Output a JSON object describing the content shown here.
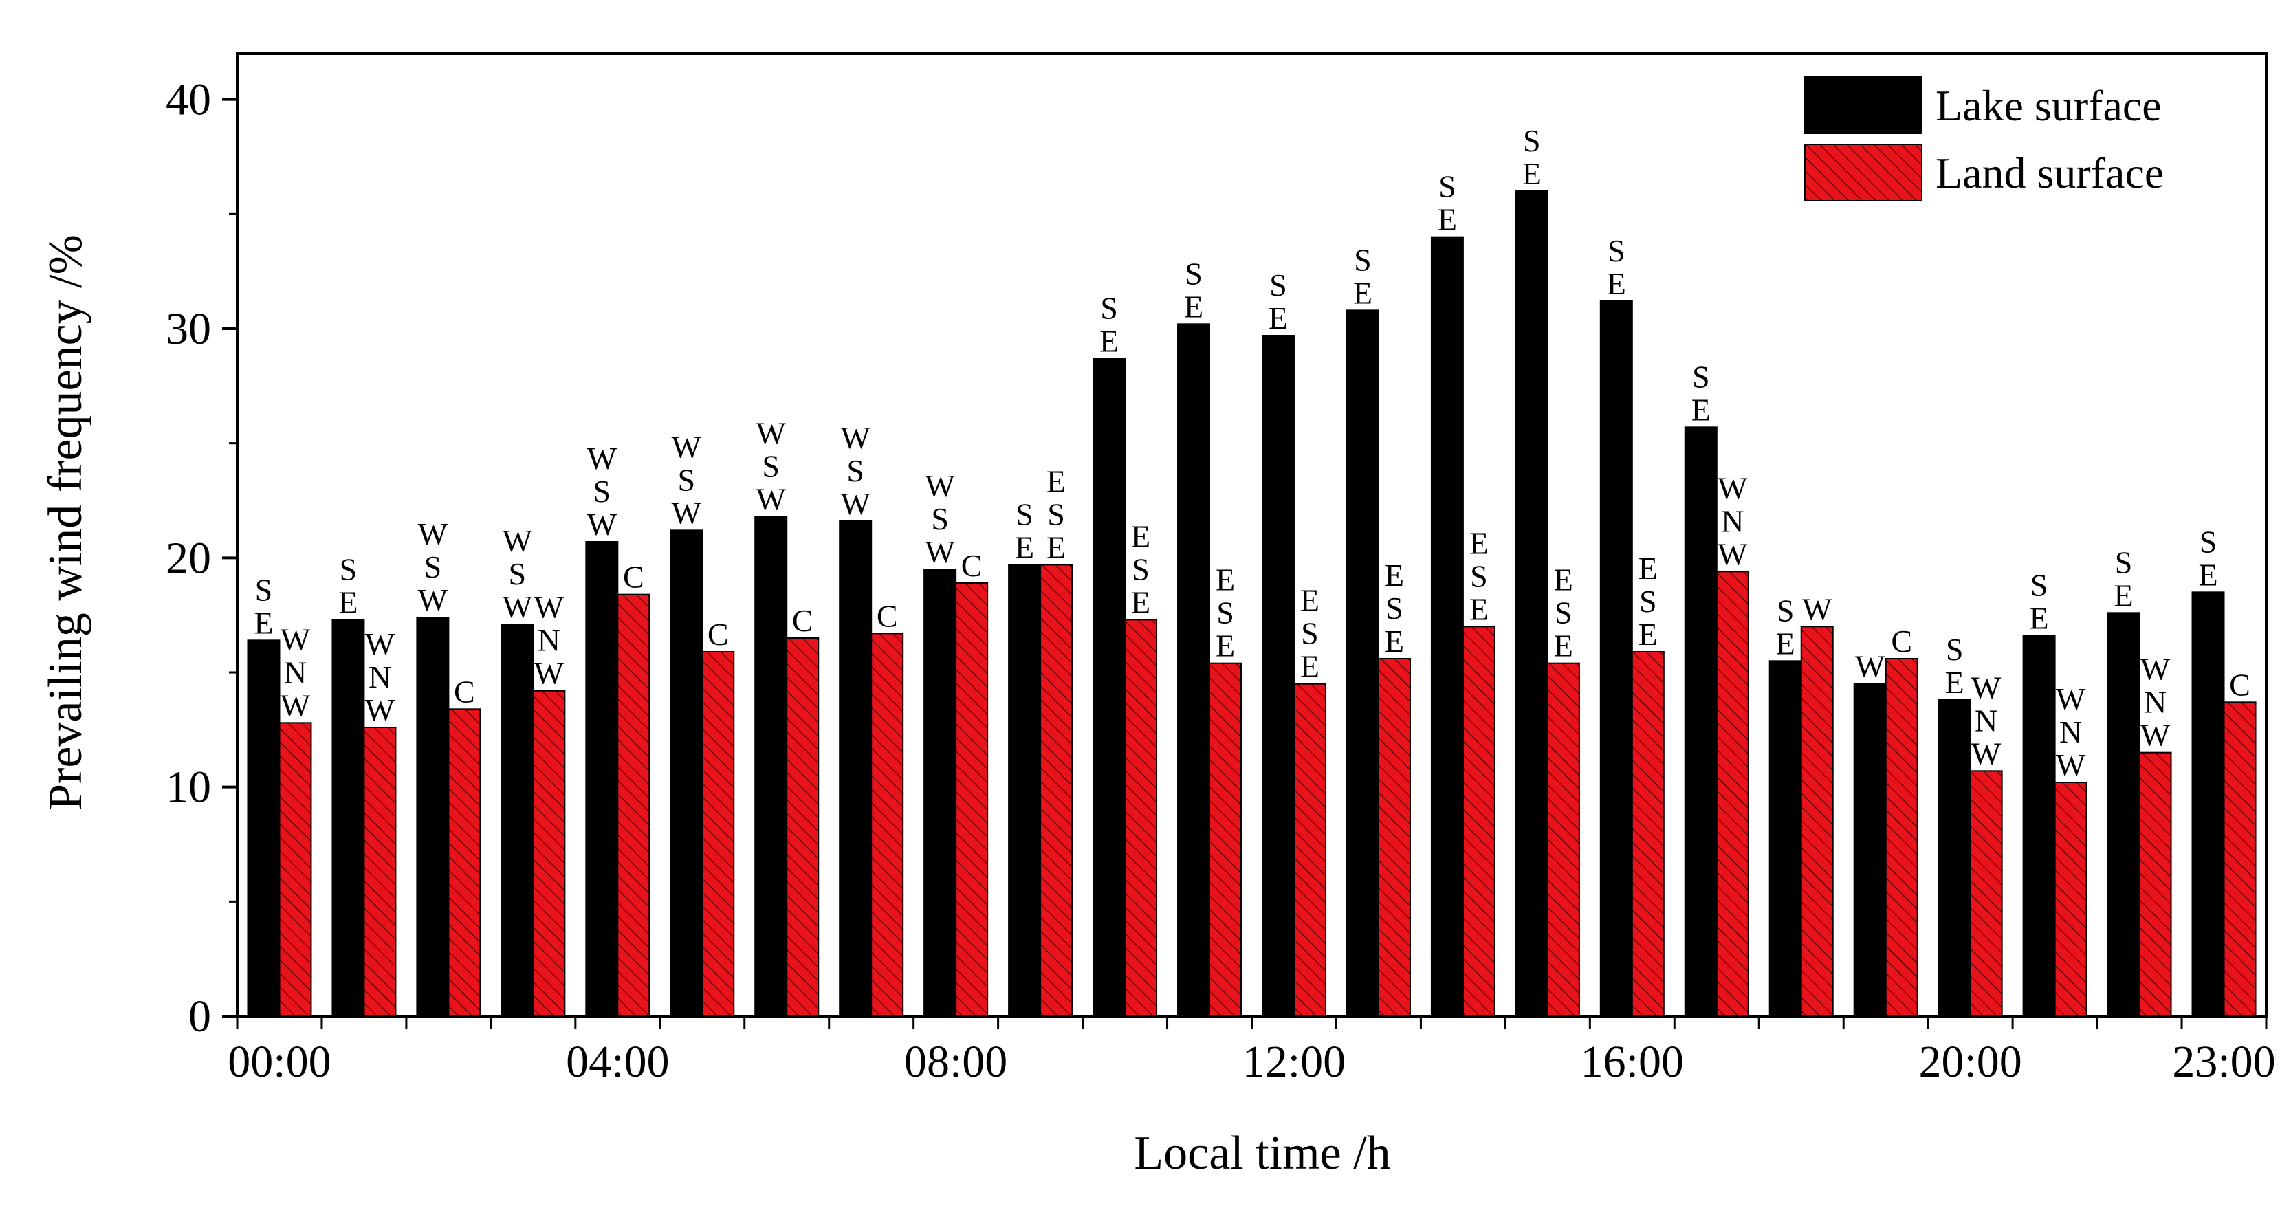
{
  "chart_data": {
    "type": "bar",
    "xlabel": "Local time /h",
    "ylabel": "Prevailing wind frequency /%",
    "ylim": [
      0,
      42
    ],
    "yticks": [
      0,
      10,
      20,
      30,
      40
    ],
    "xtick_labels": [
      {
        "index": 0,
        "label": "00:00"
      },
      {
        "index": 4,
        "label": "04:00"
      },
      {
        "index": 8,
        "label": "08:00"
      },
      {
        "index": 12,
        "label": "12:00"
      },
      {
        "index": 16,
        "label": "16:00"
      },
      {
        "index": 20,
        "label": "20:00"
      },
      {
        "index": 23,
        "label": "23:00"
      }
    ],
    "categories": [
      "00:00",
      "01:00",
      "02:00",
      "03:00",
      "04:00",
      "05:00",
      "06:00",
      "07:00",
      "08:00",
      "09:00",
      "10:00",
      "11:00",
      "12:00",
      "13:00",
      "14:00",
      "15:00",
      "16:00",
      "17:00",
      "18:00",
      "19:00",
      "20:00",
      "21:00",
      "22:00",
      "23:00"
    ],
    "legend_position": "top-right",
    "series": [
      {
        "name": "Lake surface",
        "color": "#000000",
        "pattern": "solid",
        "values": [
          16.4,
          17.3,
          17.4,
          17.1,
          20.7,
          21.2,
          21.8,
          21.6,
          19.5,
          19.7,
          28.7,
          30.2,
          29.7,
          30.8,
          34.0,
          36.0,
          31.2,
          25.7,
          15.5,
          14.5,
          13.8,
          16.6,
          17.6,
          18.5
        ],
        "labels": [
          "SE",
          "SE",
          "WSW",
          "WSW",
          "WSW",
          "WSW",
          "WSW",
          "WSW",
          "WSW",
          "SE",
          "SE",
          "SE",
          "SE",
          "SE",
          "SE",
          "SE",
          "SE",
          "SE",
          "SE",
          "W",
          "SE",
          "SE",
          "SE",
          "SE"
        ]
      },
      {
        "name": "Land surface",
        "color": "#e8131b",
        "pattern": "hatched",
        "values": [
          12.8,
          12.6,
          13.4,
          14.2,
          18.4,
          15.9,
          16.5,
          16.7,
          18.9,
          19.7,
          17.3,
          15.4,
          14.5,
          15.6,
          17.0,
          15.4,
          15.9,
          19.4,
          17.0,
          15.6,
          10.7,
          10.2,
          11.5,
          13.7
        ],
        "labels": [
          "WNW",
          "WNW",
          "C",
          "WNW",
          "C",
          "C",
          "C",
          "C",
          "C",
          "ESE",
          "ESE",
          "ESE",
          "ESE",
          "ESE",
          "ESE",
          "ESE",
          "ESE",
          "WNW",
          "W",
          "C",
          "WNW",
          "WNW",
          "WNW",
          "C"
        ]
      }
    ]
  }
}
